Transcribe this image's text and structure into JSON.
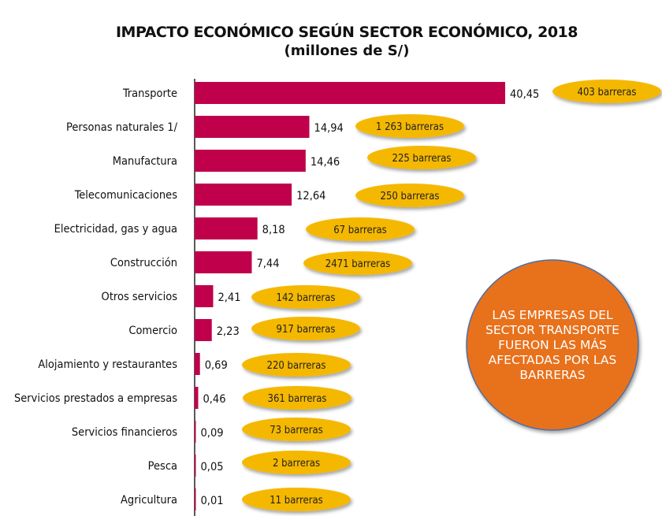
{
  "chart_data": {
    "type": "bar",
    "orientation": "horizontal",
    "title": "IMPACTO ECONÓMICO SEGÚN SECTOR ECONÓMICO, 2018",
    "subtitle": "(millones de S/)",
    "categories": [
      "Transporte",
      "Personas naturales 1/",
      "Manufactura",
      "Telecomunicaciones",
      "Electricidad, gas y agua",
      "Construcción",
      "Otros servicios",
      "Comercio",
      "Alojamiento y restaurantes",
      "Servicios prestados a empresas",
      "Servicios financieros",
      "Pesca",
      "Agricultura"
    ],
    "values": [
      40.45,
      14.94,
      14.46,
      12.64,
      8.18,
      7.44,
      2.41,
      2.23,
      0.69,
      0.46,
      0.09,
      0.05,
      0.01
    ],
    "value_labels": [
      "40,45",
      "14,94",
      "14,46",
      "12,64",
      "8,18",
      "7,44",
      "2,41",
      "2,23",
      "0,69",
      "0,46",
      "0,09",
      "0,05",
      "0,01"
    ],
    "annotations": [
      "403 barreras",
      "1 263 barreras",
      "225 barreras",
      "250 barreras",
      "67 barreras",
      "2471 barreras",
      "142 barreras",
      "917 barreras",
      "220 barreras",
      "361 barreras",
      "73 barreras",
      "2 barreras",
      "11 barreras"
    ],
    "callout": "LAS EMPRESAS DEL SECTOR TRANSPORTE FUERON LAS MÁS AFECTADAS POR LAS BARRERAS",
    "grid": false,
    "colors": {
      "bar": "#C0004B",
      "pill": "#F5B800",
      "callout": "#E8711A",
      "callout_border": "#4A6FA5"
    }
  }
}
